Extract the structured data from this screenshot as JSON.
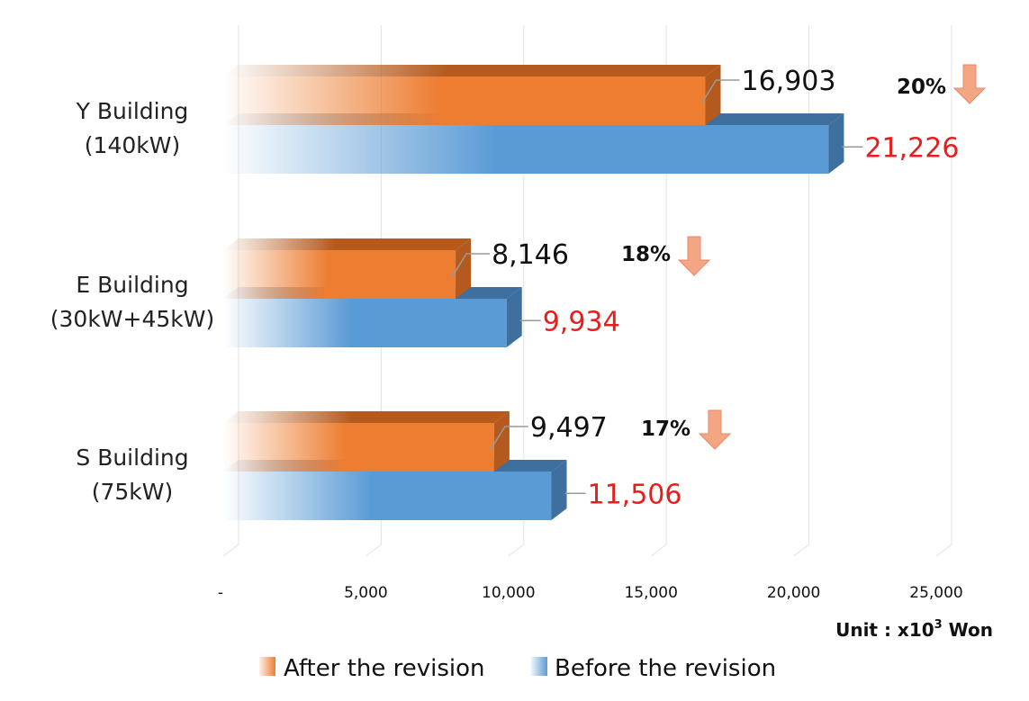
{
  "chart_data": {
    "type": "bar",
    "orientation": "horizontal",
    "categories": [
      [
        "Y Building",
        "(140kW)"
      ],
      [
        "E Building",
        "(30kW+45kW)"
      ],
      [
        "S Building",
        "(75kW)"
      ]
    ],
    "series": [
      {
        "name": "After the revision",
        "values": [
          16903,
          8146,
          9497
        ],
        "labels": [
          "16,903",
          "8,146",
          "9,497"
        ],
        "color": "#ed7d31"
      },
      {
        "name": "Before the revision",
        "values": [
          21226,
          9934,
          11506
        ],
        "labels": [
          "21,226",
          "9,934",
          "11,506"
        ],
        "color": "#5b9bd5"
      }
    ],
    "reductions": [
      "20%",
      "18%",
      "17%"
    ],
    "xlim": [
      0,
      25000
    ],
    "xticks": [
      0,
      5000,
      10000,
      15000,
      20000,
      25000
    ],
    "xtick_labels": [
      "-",
      "5,000",
      "10,000",
      "15,000",
      "20,000",
      "25,000"
    ],
    "unit_label": {
      "prefix": "Unit : x10",
      "sup": "3",
      "suffix": " Won"
    },
    "grid": true,
    "legend_position": "bottom",
    "colors": {
      "before_label": "#e81e1e",
      "arrow": "#f4a582"
    }
  }
}
